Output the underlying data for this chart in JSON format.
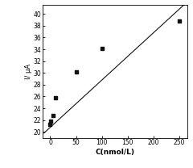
{
  "scatter_x": [
    0,
    1,
    5,
    10,
    50,
    100,
    250
  ],
  "scatter_y": [
    21.2,
    21.8,
    22.8,
    25.8,
    30.2,
    34.2,
    38.8
  ],
  "line_x": [
    -12,
    262
  ],
  "line_y": [
    19.8,
    41.8
  ],
  "xlabel": "C(nmol/L)",
  "ylabel": "I/ μA",
  "xlim": [
    -15,
    265
  ],
  "ylim": [
    19,
    41.5
  ],
  "xticks": [
    0,
    50,
    100,
    150,
    200,
    250
  ],
  "yticks": [
    20,
    22,
    24,
    26,
    28,
    30,
    32,
    34,
    36,
    38,
    40
  ],
  "marker": "s",
  "marker_size": 2.5,
  "marker_color": "#111111",
  "line_color": "#111111",
  "line_width": 0.8,
  "bg_color": "#ffffff",
  "xlabel_fontsize": 6.5,
  "ylabel_fontsize": 6.0,
  "tick_fontsize": 5.5
}
